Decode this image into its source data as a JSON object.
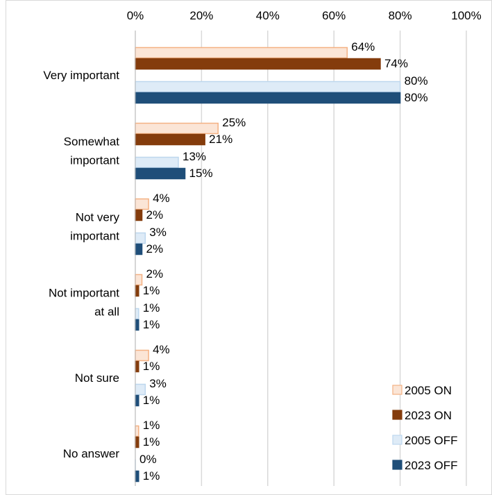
{
  "chart_data": {
    "type": "bar",
    "orientation": "horizontal",
    "categories": [
      [
        "Very important"
      ],
      [
        "Somewhat",
        "important"
      ],
      [
        "Not very",
        "important"
      ],
      [
        "Not important",
        "at all"
      ],
      [
        "Not sure"
      ],
      [
        "No answer"
      ]
    ],
    "series": [
      {
        "name": "2005 ON",
        "color": "#FBE5D6",
        "stroke": "#F4B183",
        "values": [
          64,
          25,
          4,
          2,
          4,
          1
        ]
      },
      {
        "name": "2023 ON",
        "color": "#843C0C",
        "stroke": "#843C0C",
        "values": [
          74,
          21,
          2,
          1,
          1,
          1
        ]
      },
      {
        "name": "2005 OFF",
        "color": "#DEEBF7",
        "stroke": "#BDD7EE",
        "values": [
          80,
          13,
          3,
          1,
          3,
          0
        ]
      },
      {
        "name": "2023 OFF",
        "color": "#1F4E79",
        "stroke": "#1F4E79",
        "values": [
          80,
          15,
          2,
          1,
          1,
          1
        ]
      }
    ],
    "data_label_suffix": "%",
    "xlim": [
      0,
      100
    ],
    "xticks": [
      "0%",
      "20%",
      "40%",
      "60%",
      "80%",
      "100%"
    ],
    "x_axis_position": "top",
    "gridlines": "vertical",
    "legend_position": "bottom-right",
    "title": "",
    "xlabel": "",
    "ylabel": ""
  }
}
